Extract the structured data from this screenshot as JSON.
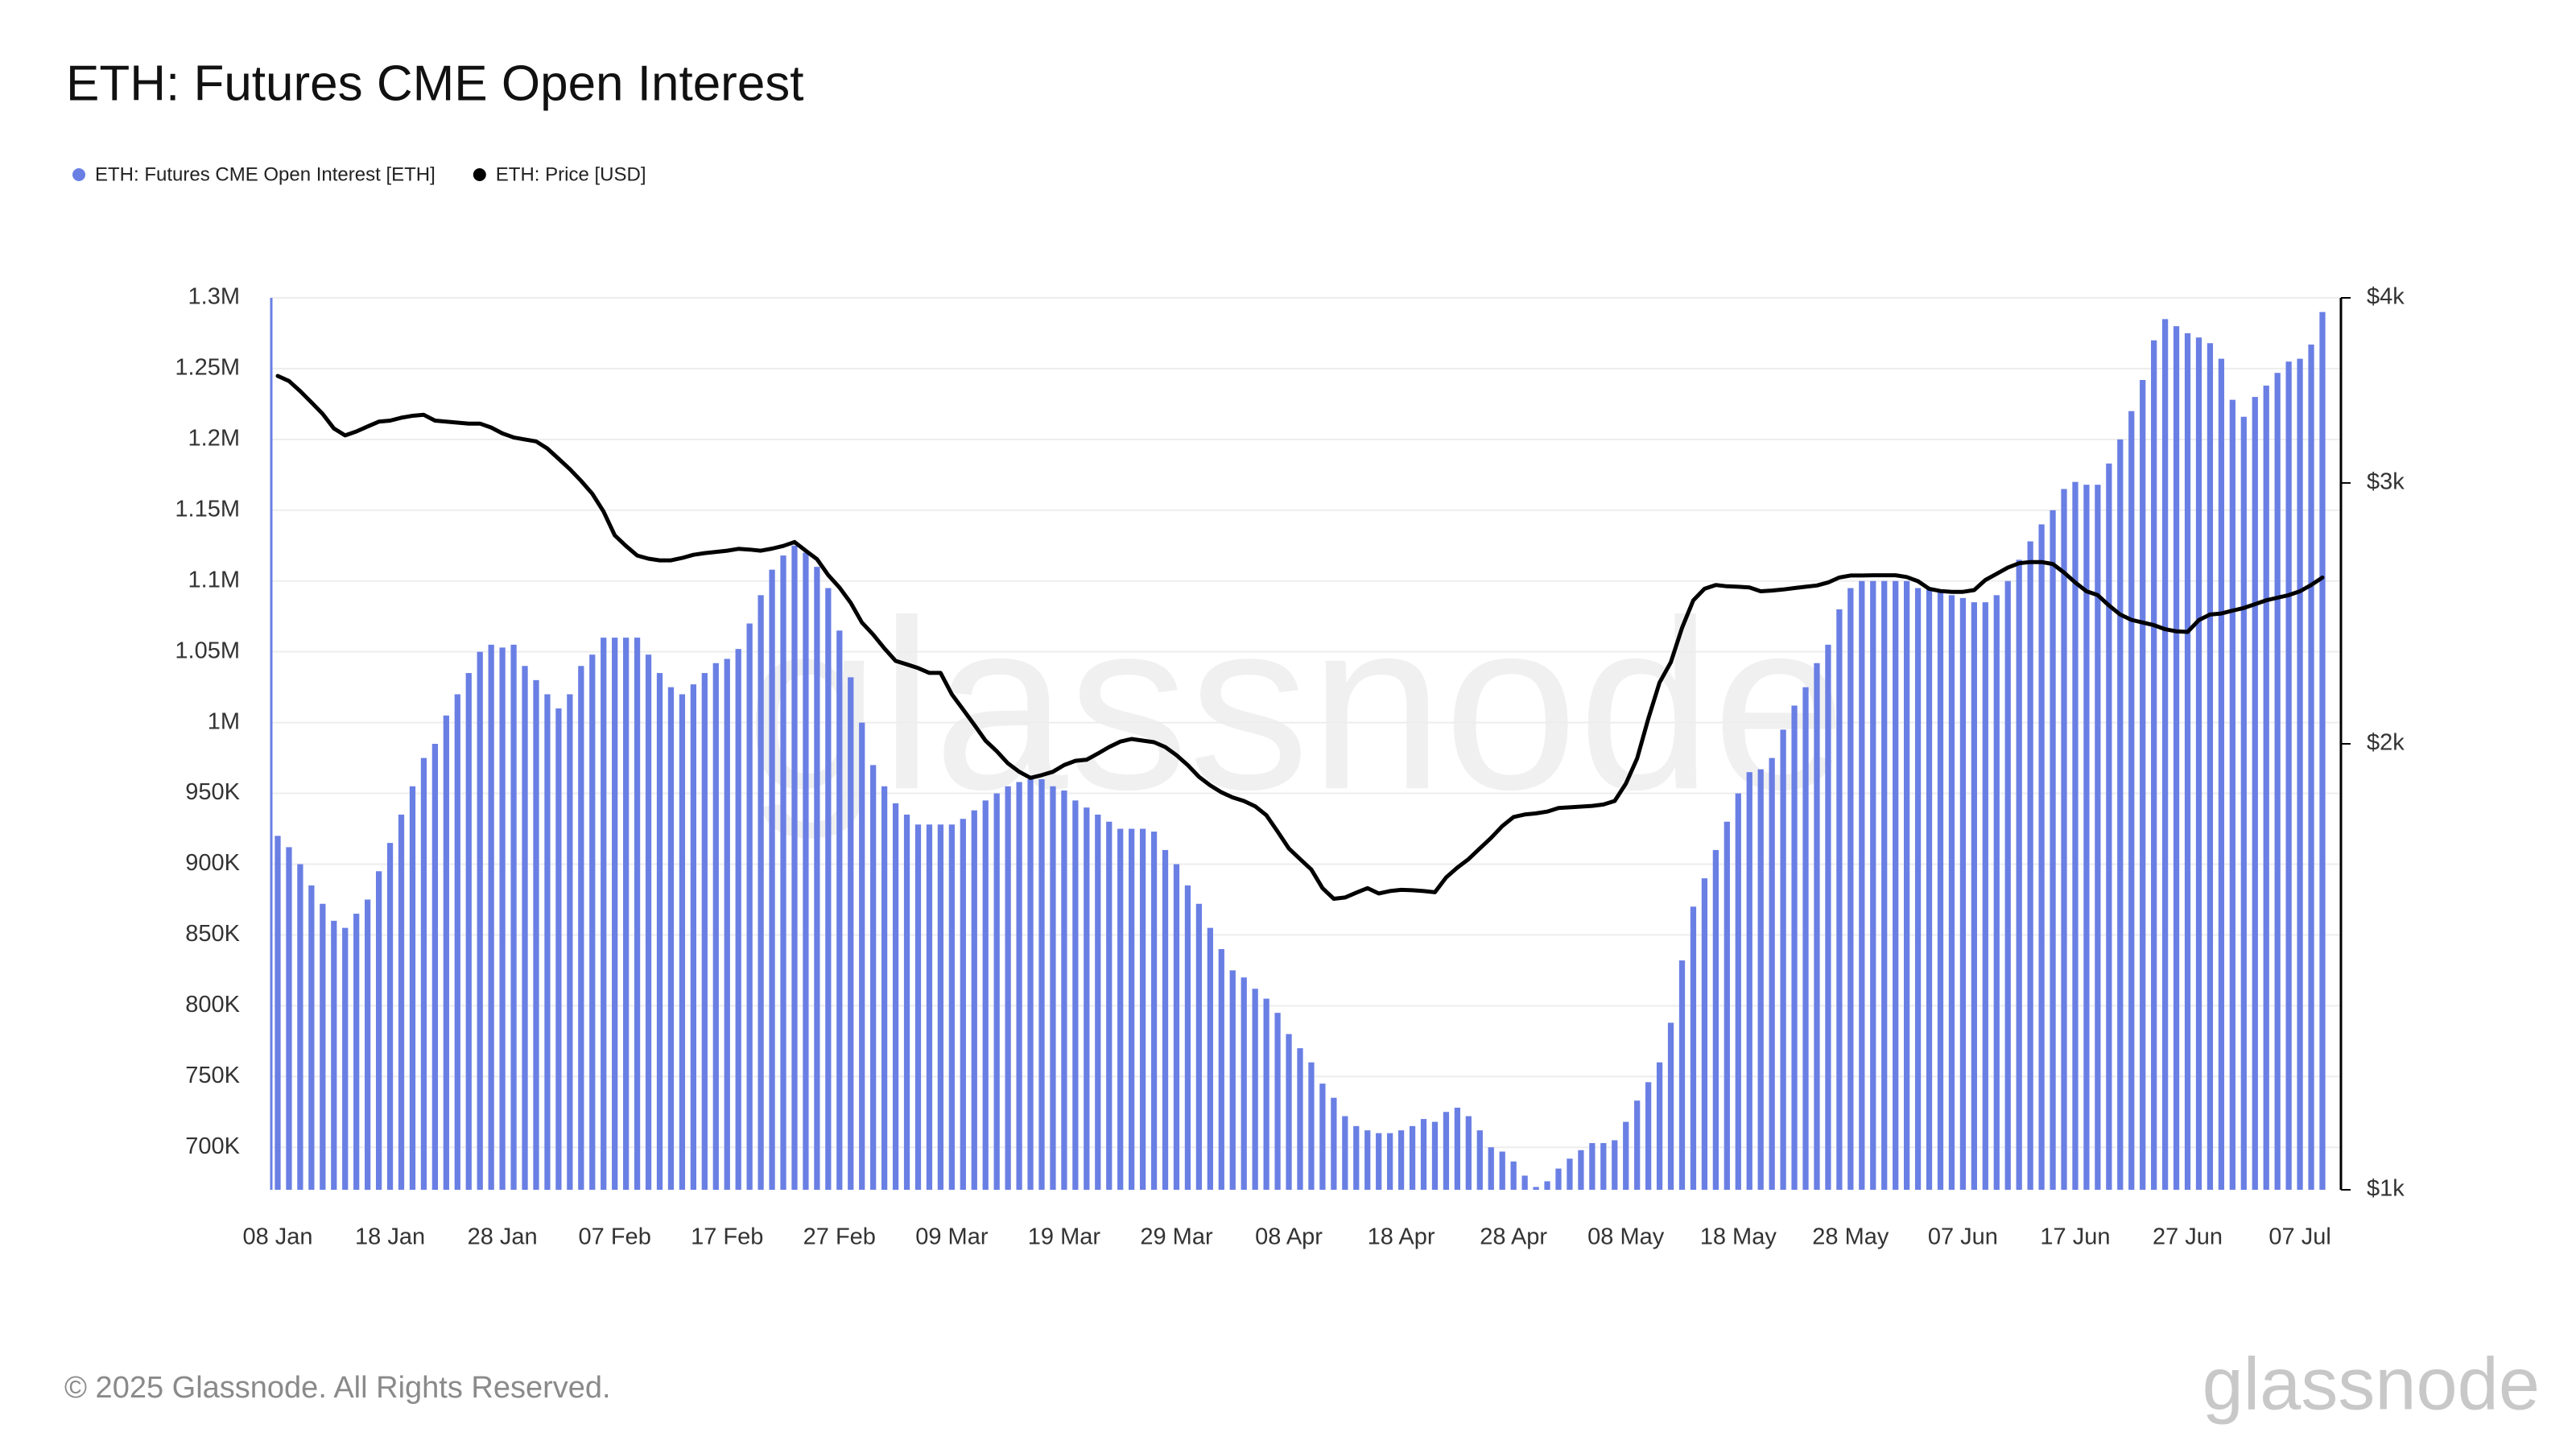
{
  "chart_data": {
    "type": "combo",
    "title": "ETH: Futures CME Open Interest",
    "footer": "© 2025 Glassnode. All Rights Reserved.",
    "watermark": "glassnode",
    "logo": "glassnode",
    "grid": true,
    "legend": "top-left",
    "categories": [
      "08 Jan",
      null,
      null,
      null,
      null,
      null,
      null,
      null,
      null,
      null,
      "18 Jan",
      null,
      null,
      null,
      null,
      null,
      null,
      null,
      null,
      null,
      "28 Jan",
      null,
      null,
      null,
      null,
      null,
      null,
      null,
      null,
      null,
      "07 Feb",
      null,
      null,
      null,
      null,
      null,
      null,
      null,
      null,
      null,
      "17 Feb",
      null,
      null,
      null,
      null,
      null,
      null,
      null,
      null,
      null,
      "27 Feb",
      null,
      null,
      null,
      null,
      null,
      null,
      null,
      null,
      null,
      "09 Mar",
      null,
      null,
      null,
      null,
      null,
      null,
      null,
      null,
      null,
      "19 Mar",
      null,
      null,
      null,
      null,
      null,
      null,
      null,
      null,
      null,
      "29 Mar",
      null,
      null,
      null,
      null,
      null,
      null,
      null,
      null,
      null,
      "08 Apr",
      null,
      null,
      null,
      null,
      null,
      null,
      null,
      null,
      null,
      "18 Apr",
      null,
      null,
      null,
      null,
      null,
      null,
      null,
      null,
      null,
      "28 Apr",
      null,
      null,
      null,
      null,
      null,
      null,
      null,
      null,
      null,
      "08 May",
      null,
      null,
      null,
      null,
      null,
      null,
      null,
      null,
      null,
      "18 May",
      null,
      null,
      null,
      null,
      null,
      null,
      null,
      null,
      null,
      "28 May",
      null,
      null,
      null,
      null,
      null,
      null,
      null,
      null,
      null,
      "07 Jun",
      null,
      null,
      null,
      null,
      null,
      null,
      null,
      null,
      null,
      "17 Jun",
      null,
      null,
      null,
      null,
      null,
      null,
      null,
      null,
      null,
      "27 Jun",
      null,
      null,
      null,
      null,
      null,
      null,
      null,
      null,
      null,
      "07 Jul",
      null,
      null
    ],
    "ylim": [
      670000,
      1300000
    ],
    "yticks": [
      {
        "value": 700000,
        "label": "700K"
      },
      {
        "value": 750000,
        "label": "750K"
      },
      {
        "value": 800000,
        "label": "800K"
      },
      {
        "value": 850000,
        "label": "850K"
      },
      {
        "value": 900000,
        "label": "900K"
      },
      {
        "value": 950000,
        "label": "950K"
      },
      {
        "value": 1000000,
        "label": "1M"
      },
      {
        "value": 1050000,
        "label": "1.05M"
      },
      {
        "value": 1100000,
        "label": "1.1M"
      },
      {
        "value": 1150000,
        "label": "1.15M"
      },
      {
        "value": 1200000,
        "label": "1.2M"
      },
      {
        "value": 1250000,
        "label": "1.25M"
      },
      {
        "value": 1300000,
        "label": "1.3M"
      }
    ],
    "y2lim": [
      1000,
      4000
    ],
    "y2scale": "log",
    "y2ticks": [
      {
        "value": 1000,
        "label": "$1k"
      },
      {
        "value": 2000,
        "label": "$2k"
      },
      {
        "value": 3000,
        "label": "$3k"
      },
      {
        "value": 4000,
        "label": "$4k"
      }
    ],
    "series": [
      {
        "name": "ETH: Futures CME Open Interest [ETH]",
        "type": "bar",
        "color": "#6a7fe4",
        "values": [
          920000,
          912000,
          900000,
          885000,
          872000,
          860000,
          855000,
          865000,
          875000,
          895000,
          915000,
          935000,
          955000,
          975000,
          985000,
          1005000,
          1020000,
          1035000,
          1050000,
          1055000,
          1053000,
          1055000,
          1040000,
          1030000,
          1020000,
          1010000,
          1020000,
          1040000,
          1048000,
          1060000,
          1060000,
          1060000,
          1060000,
          1048000,
          1035000,
          1025000,
          1020000,
          1027000,
          1035000,
          1042000,
          1045000,
          1052000,
          1070000,
          1090000,
          1108000,
          1118000,
          1125000,
          1120000,
          1110000,
          1095000,
          1065000,
          1032000,
          1000000,
          970000,
          955000,
          943000,
          935000,
          928000,
          928000,
          928000,
          928000,
          932000,
          938000,
          945000,
          950000,
          955000,
          958000,
          960000,
          960000,
          955000,
          952000,
          945000,
          940000,
          935000,
          930000,
          925000,
          925000,
          925000,
          923000,
          910000,
          900000,
          885000,
          872000,
          855000,
          840000,
          825000,
          820000,
          812000,
          805000,
          795000,
          780000,
          770000,
          760000,
          745000,
          735000,
          722000,
          715000,
          712000,
          710000,
          710000,
          712000,
          715000,
          720000,
          718000,
          725000,
          728000,
          722000,
          712000,
          700000,
          697000,
          690000,
          680000,
          672000,
          676000,
          685000,
          692000,
          698000,
          703000,
          703000,
          705000,
          718000,
          733000,
          746000,
          760000,
          788000,
          832000,
          870000,
          890000,
          910000,
          930000,
          950000,
          965000,
          967000,
          975000,
          995000,
          1012000,
          1025000,
          1042000,
          1055000,
          1080000,
          1095000,
          1100000,
          1100000,
          1100000,
          1100000,
          1100000,
          1095000,
          1095000,
          1092000,
          1090000,
          1088000,
          1085000,
          1085000,
          1090000,
          1100000,
          1115000,
          1128000,
          1140000,
          1150000,
          1165000,
          1170000,
          1168000,
          1168000,
          1183000,
          1200000,
          1220000,
          1242000,
          1270000,
          1285000,
          1280000,
          1275000,
          1272000,
          1268000,
          1257000,
          1228000,
          1216000,
          1230000,
          1238000,
          1247000,
          1255000,
          1257000,
          1267000,
          1290000
        ]
      },
      {
        "name": "ETH: Price [USD]",
        "type": "line",
        "axis": "y2",
        "color": "#000000",
        "values": [
          3543,
          3515,
          3460,
          3400,
          3340,
          3265,
          3230,
          3250,
          3275,
          3300,
          3305,
          3320,
          3330,
          3335,
          3305,
          3300,
          3295,
          3290,
          3290,
          3270,
          3240,
          3220,
          3210,
          3200,
          3165,
          3115,
          3065,
          3010,
          2950,
          2870,
          2765,
          2720,
          2680,
          2667,
          2660,
          2660,
          2670,
          2683,
          2690,
          2695,
          2700,
          2708,
          2705,
          2700,
          2709,
          2720,
          2737,
          2700,
          2665,
          2600,
          2550,
          2490,
          2415,
          2370,
          2320,
          2275,
          2263,
          2250,
          2233,
          2233,
          2160,
          2110,
          2060,
          2010,
          1977,
          1940,
          1915,
          1897,
          1905,
          1915,
          1935,
          1948,
          1951,
          1970,
          1990,
          2007,
          2015,
          2010,
          2005,
          1990,
          1965,
          1935,
          1900,
          1875,
          1855,
          1840,
          1830,
          1815,
          1790,
          1745,
          1700,
          1672,
          1645,
          1598,
          1572,
          1575,
          1587,
          1598,
          1585,
          1591,
          1594,
          1593,
          1591,
          1588,
          1625,
          1650,
          1672,
          1700,
          1728,
          1760,
          1785,
          1792,
          1795,
          1800,
          1810,
          1812,
          1814,
          1816,
          1820,
          1830,
          1880,
          1955,
          2080,
          2200,
          2270,
          2395,
          2500,
          2545,
          2560,
          2555,
          2553,
          2550,
          2535,
          2538,
          2542,
          2548,
          2553,
          2558,
          2570,
          2590,
          2598,
          2598,
          2599,
          2599,
          2599,
          2592,
          2575,
          2545,
          2536,
          2533,
          2533,
          2540,
          2580,
          2605,
          2630,
          2648,
          2653,
          2653,
          2645,
          2610,
          2570,
          2535,
          2520,
          2480,
          2445,
          2425,
          2415,
          2405,
          2390,
          2382,
          2380,
          2424,
          2445,
          2449,
          2460,
          2470,
          2485,
          2500,
          2510,
          2520,
          2535,
          2560,
          2590
        ]
      }
    ]
  }
}
